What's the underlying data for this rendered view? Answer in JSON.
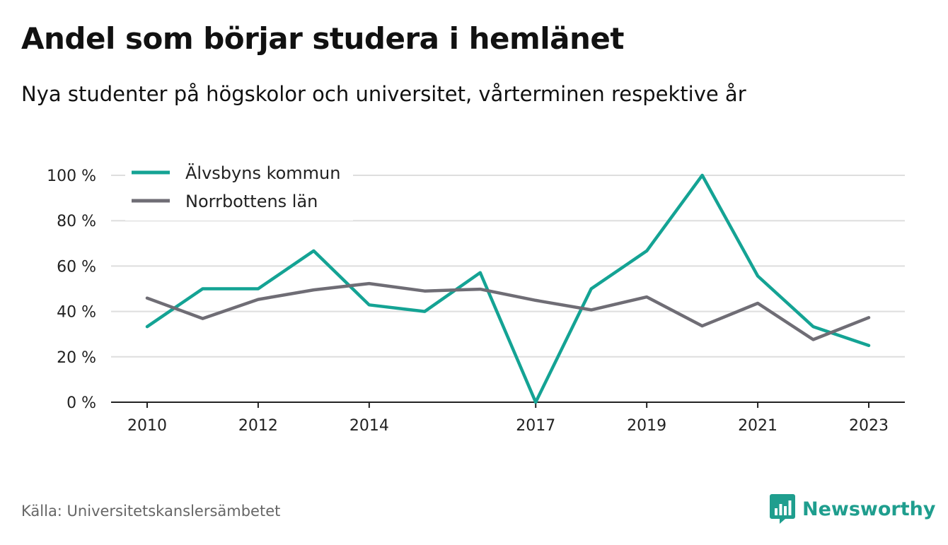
{
  "header": {
    "title": "Andel som börjar studera i hemlänet",
    "subtitle": "Nya studenter på högskolor och universitet, vårterminen respektive år"
  },
  "footer": {
    "source": "Källa: Universitetskanslersämbetet",
    "brand": "Newsworthy"
  },
  "colors": {
    "series_1": "#14a394",
    "series_2": "#6f6d75",
    "grid": "#dedede",
    "axis": "#222222",
    "brand": "#1f9e8e"
  },
  "chart_data": {
    "type": "line",
    "title": "Andel som börjar studera i hemlänet",
    "subtitle": "Nya studenter på högskolor och universitet, vårterminen respektive år",
    "x": [
      2010,
      2011,
      2012,
      2013,
      2014,
      2015,
      2016,
      2017,
      2018,
      2019,
      2020,
      2021,
      2022,
      2023
    ],
    "x_ticks": [
      "2010",
      "2012",
      "2014",
      "2017",
      "2019",
      "2021",
      "2023"
    ],
    "y_ticks": [
      "0 %",
      "20 %",
      "40 %",
      "60 %",
      "80 %",
      "100 %"
    ],
    "ylim": [
      0,
      100
    ],
    "grid": true,
    "legend_position": "top-left",
    "series": [
      {
        "name": "Älvsbyns kommun",
        "color": "#14a394",
        "values": [
          33.3,
          50,
          50,
          66.7,
          42.9,
          40,
          57.1,
          0,
          50,
          66.7,
          100,
          55.6,
          33.3,
          25
        ]
      },
      {
        "name": "Norrbottens län",
        "color": "#6f6d75",
        "values": [
          45.9,
          36.9,
          45.3,
          49.5,
          52.3,
          49.0,
          49.8,
          44.9,
          40.7,
          46.4,
          33.6,
          43.6,
          27.6,
          37.3
        ]
      }
    ]
  }
}
